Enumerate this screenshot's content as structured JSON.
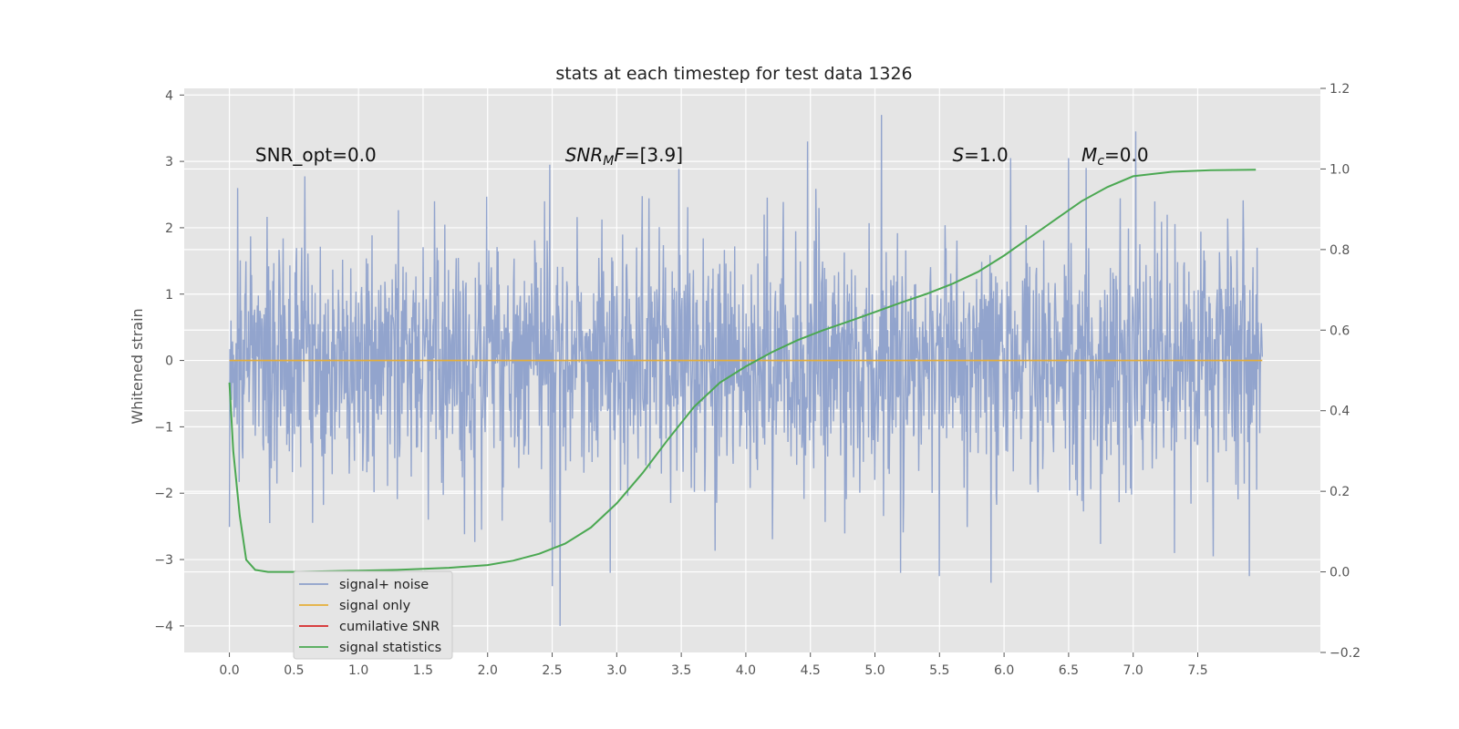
{
  "chart_data": {
    "type": "line",
    "title": "stats at each timestep for test data 1326",
    "ylabel": "Whitened strain",
    "xlim": [
      -0.35,
      8.45
    ],
    "ylim": [
      -4.4,
      4.1
    ],
    "y2lim": [
      -0.2,
      1.2
    ],
    "grid": true,
    "legend_position": "bottom-left",
    "x_ticks": [
      0.0,
      0.5,
      1.0,
      1.5,
      2.0,
      2.5,
      3.0,
      3.5,
      4.0,
      4.5,
      5.0,
      5.5,
      6.0,
      6.5,
      7.0,
      7.5
    ],
    "x_tick_labels": [
      "0.0",
      "0.5",
      "1.0",
      "1.5",
      "2.0",
      "2.5",
      "3.0",
      "3.5",
      "4.0",
      "4.5",
      "5.0",
      "5.5",
      "6.0",
      "6.5",
      "7.0",
      "7.5"
    ],
    "y_ticks": [
      -4,
      -3,
      -2,
      -1,
      0,
      1,
      2,
      3,
      4
    ],
    "y_tick_labels": [
      "−4",
      "−3",
      "−2",
      "−1",
      "0",
      "1",
      "2",
      "3",
      "4"
    ],
    "y2_ticks": [
      -0.2,
      0.0,
      0.2,
      0.4,
      0.6,
      0.8,
      1.0,
      1.2
    ],
    "y2_tick_labels": [
      "−0.2",
      "0.0",
      "0.2",
      "0.4",
      "0.6",
      "0.8",
      "1.0",
      "1.2"
    ],
    "annotations": [
      {
        "id": "snr-opt",
        "x": 0.2,
        "y": 3.0,
        "parts": [
          {
            "t": "SNR_opt=0.0"
          }
        ]
      },
      {
        "id": "snr-mf",
        "x": 2.6,
        "y": 3.0,
        "parts": [
          {
            "t": "SNR",
            "i": true
          },
          {
            "t": "M",
            "i": true,
            "sub": true
          },
          {
            "t": "F",
            "i": true
          },
          {
            "t": "=[3.9]"
          }
        ]
      },
      {
        "id": "s-value",
        "x": 5.6,
        "y": 3.0,
        "parts": [
          {
            "t": "S",
            "i": true
          },
          {
            "t": "=1.0"
          }
        ]
      },
      {
        "id": "mc-value",
        "x": 6.6,
        "y": 3.0,
        "parts": [
          {
            "t": "M",
            "i": true
          },
          {
            "t": "c",
            "i": true,
            "sub": true
          },
          {
            "t": "=0.0"
          }
        ]
      }
    ],
    "series": [
      {
        "name": "signal+ noise",
        "color": "#8da0cb",
        "axis": "left",
        "x_range": [
          0.0,
          8.0
        ],
        "sample_count": 2000,
        "spread": 0.95,
        "peaks": [
          {
            "x": 4.48,
            "y": 3.3
          },
          {
            "x": 5.05,
            "y": 3.7
          },
          {
            "x": 7.02,
            "y": 3.45
          },
          {
            "x": 2.48,
            "y": 2.95
          },
          {
            "x": 6.05,
            "y": 3.05
          },
          {
            "x": 6.5,
            "y": 3.05
          },
          {
            "x": 5.9,
            "y": -3.35
          },
          {
            "x": 2.56,
            "y": -4.0
          },
          {
            "x": 2.5,
            "y": -3.4
          },
          {
            "x": 7.9,
            "y": -3.25
          },
          {
            "x": 2.95,
            "y": -3.2
          },
          {
            "x": 5.2,
            "y": -3.2
          },
          {
            "x": 5.5,
            "y": -3.25
          }
        ]
      },
      {
        "name": "signal only",
        "color": "#e5ae38",
        "axis": "left",
        "x": [
          0.0,
          8.0
        ],
        "y": [
          0.0,
          0.0
        ]
      },
      {
        "name": "cumilative SNR",
        "color": "#d62728",
        "axis": "right",
        "x": [],
        "y": []
      },
      {
        "name": "signal statistics",
        "color": "#4ba852",
        "axis": "right",
        "x": [
          0.0,
          0.03,
          0.08,
          0.13,
          0.2,
          0.3,
          0.5,
          0.8,
          1.0,
          1.3,
          1.7,
          2.0,
          2.2,
          2.4,
          2.6,
          2.8,
          3.0,
          3.2,
          3.4,
          3.6,
          3.8,
          4.0,
          4.2,
          4.4,
          4.6,
          4.8,
          5.0,
          5.2,
          5.4,
          5.6,
          5.8,
          6.0,
          6.2,
          6.4,
          6.6,
          6.8,
          7.0,
          7.3,
          7.6,
          7.95
        ],
        "y": [
          0.47,
          0.3,
          0.14,
          0.03,
          0.005,
          0.0,
          0.0,
          0.002,
          0.003,
          0.005,
          0.01,
          0.017,
          0.028,
          0.045,
          0.07,
          0.11,
          0.17,
          0.245,
          0.33,
          0.41,
          0.47,
          0.51,
          0.545,
          0.575,
          0.6,
          0.622,
          0.645,
          0.668,
          0.69,
          0.715,
          0.745,
          0.785,
          0.83,
          0.875,
          0.92,
          0.955,
          0.982,
          0.993,
          0.997,
          0.998
        ]
      }
    ]
  }
}
